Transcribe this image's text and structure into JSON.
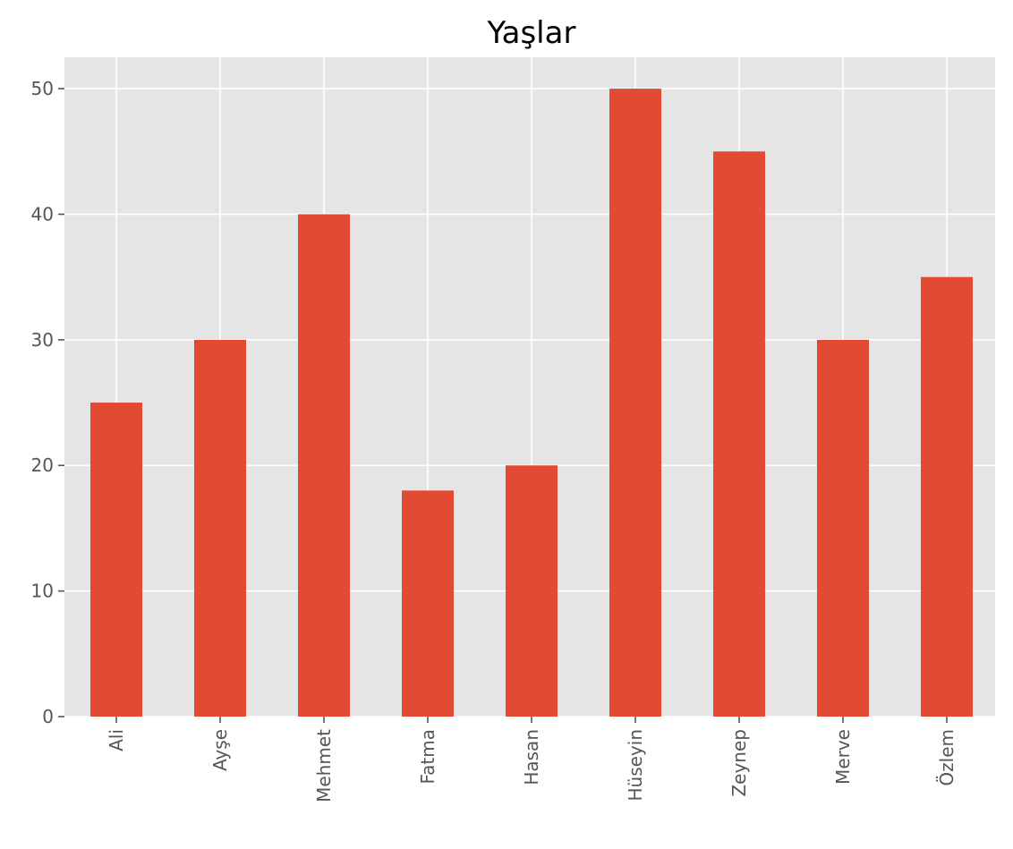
{
  "chart_data": {
    "type": "bar",
    "title": "Yaşlar",
    "xlabel": "",
    "ylabel": "",
    "categories": [
      "Ali",
      "Ayşe",
      "Mehmet",
      "Fatma",
      "Hasan",
      "Hüseyin",
      "Zeynep",
      "Merve",
      "Özlem"
    ],
    "values": [
      25,
      30,
      40,
      18,
      20,
      50,
      45,
      30,
      35
    ],
    "ylim": [
      0,
      52.5
    ],
    "yticks": [
      "0",
      "10",
      "20",
      "30",
      "40",
      "50"
    ],
    "grid": true,
    "bar_color": "#E24A33",
    "background_color": "#E5E5E5",
    "grid_color": "#FFFFFF"
  }
}
